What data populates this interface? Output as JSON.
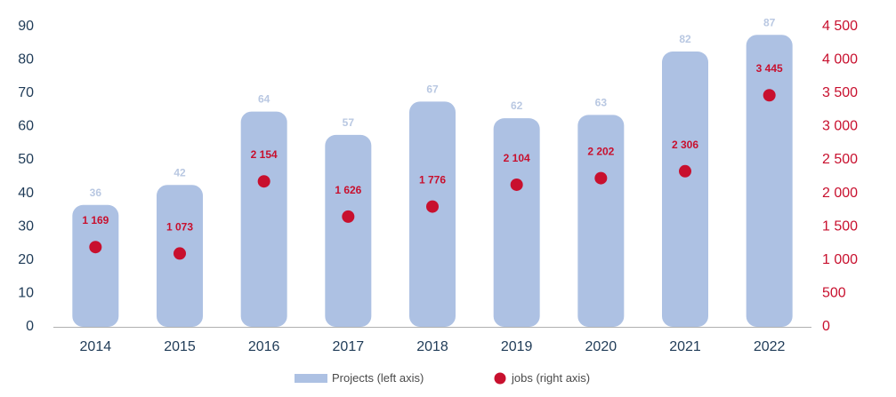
{
  "chart_data": {
    "type": "bar",
    "categories": [
      "2014",
      "2015",
      "2016",
      "2017",
      "2018",
      "2019",
      "2020",
      "2021",
      "2022"
    ],
    "series": [
      {
        "name": "Projects (left axis)",
        "type": "bar",
        "axis": "left",
        "values": [
          36,
          42,
          64,
          57,
          67,
          62,
          63,
          82,
          87
        ],
        "labels": [
          "36",
          "42",
          "64",
          "57",
          "67",
          "62",
          "63",
          "82",
          "87"
        ],
        "color": "#adc1e3"
      },
      {
        "name": "jobs (right axis)",
        "type": "scatter",
        "axis": "right",
        "values": [
          1169,
          1073,
          2154,
          1626,
          1776,
          2104,
          2202,
          2306,
          3445
        ],
        "labels": [
          "1 169",
          "1 073",
          "2 154",
          "1 626",
          "1 776",
          "2 104",
          "2 202",
          "2 306",
          "3 445"
        ],
        "color": "#c8102e"
      }
    ],
    "y_left": {
      "range": [
        0,
        90
      ],
      "ticks": [
        0,
        10,
        20,
        30,
        40,
        50,
        60,
        70,
        80,
        90
      ],
      "tick_labels": [
        "0",
        "10",
        "20",
        "30",
        "40",
        "50",
        "60",
        "70",
        "80",
        "90"
      ],
      "color": "#1f3b57"
    },
    "y_right": {
      "range": [
        0,
        4500
      ],
      "ticks": [
        0,
        500,
        1000,
        1500,
        2000,
        2500,
        3000,
        3500,
        4000,
        4500
      ],
      "tick_labels": [
        "0",
        "500",
        "1 000",
        "1 500",
        "2 000",
        "2 500",
        "3 000",
        "3 500",
        "4 000",
        "4 500"
      ],
      "color": "#c8102e"
    },
    "grid": false,
    "legend_position": "bottom-center"
  }
}
